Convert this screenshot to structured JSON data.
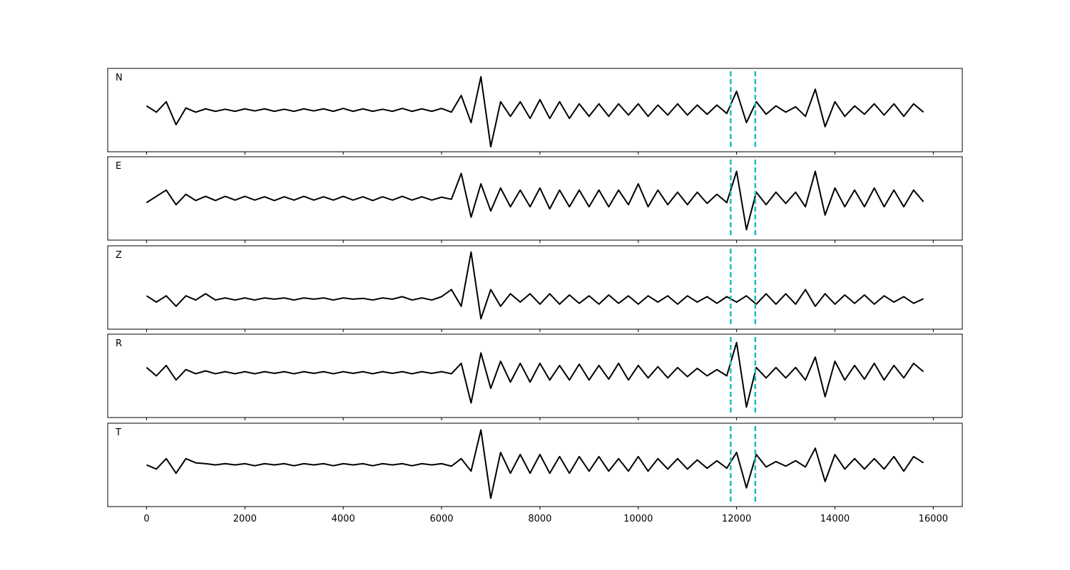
{
  "chart_data": {
    "type": "line",
    "x": [
      0,
      200,
      400,
      600,
      800,
      1000,
      1200,
      1400,
      1600,
      1800,
      2000,
      2200,
      2400,
      2600,
      2800,
      3000,
      3200,
      3400,
      3600,
      3800,
      4000,
      4200,
      4400,
      4600,
      4800,
      5000,
      5200,
      5400,
      5600,
      5800,
      6000,
      6200,
      6400,
      6600,
      6800,
      7000,
      7200,
      7400,
      7600,
      7800,
      8000,
      8200,
      8400,
      8600,
      8800,
      9000,
      9200,
      9400,
      9600,
      9800,
      10000,
      10200,
      10400,
      10600,
      10800,
      11000,
      11200,
      11400,
      11600,
      11800,
      12000,
      12200,
      12400,
      12600,
      12800,
      13000,
      13200,
      13400,
      13600,
      13800,
      14000,
      14200,
      14400,
      14600,
      14800,
      15000,
      15200,
      15400,
      15600,
      15800
    ],
    "series": [
      {
        "name": "N",
        "color": "#000000",
        "values": [
          0.1,
          -0.05,
          0.2,
          -0.35,
          0.05,
          -0.05,
          0.03,
          -0.03,
          0.02,
          -0.03,
          0.03,
          -0.02,
          0.03,
          -0.03,
          0.02,
          -0.03,
          0.03,
          -0.02,
          0.03,
          -0.03,
          0.04,
          -0.03,
          0.03,
          -0.03,
          0.02,
          -0.03,
          0.04,
          -0.03,
          0.03,
          -0.03,
          0.04,
          -0.05,
          0.35,
          -0.3,
          0.8,
          -0.88,
          0.2,
          -0.15,
          0.2,
          -0.2,
          0.25,
          -0.2,
          0.2,
          -0.2,
          0.15,
          -0.15,
          0.15,
          -0.15,
          0.15,
          -0.12,
          0.15,
          -0.15,
          0.12,
          -0.12,
          0.15,
          -0.12,
          0.12,
          -0.1,
          0.12,
          -0.08,
          0.45,
          -0.3,
          0.2,
          -0.1,
          0.1,
          -0.05,
          0.08,
          -0.15,
          0.5,
          -0.4,
          0.2,
          -0.15,
          0.1,
          -0.1,
          0.15,
          -0.12,
          0.15,
          -0.15,
          0.15,
          -0.05
        ]
      },
      {
        "name": "E",
        "color": "#000000",
        "values": [
          -0.1,
          0.05,
          0.2,
          -0.15,
          0.1,
          -0.05,
          0.05,
          -0.05,
          0.05,
          -0.04,
          0.05,
          -0.04,
          0.04,
          -0.05,
          0.04,
          -0.04,
          0.05,
          -0.04,
          0.04,
          -0.04,
          0.05,
          -0.04,
          0.04,
          -0.05,
          0.04,
          -0.04,
          0.05,
          -0.04,
          0.04,
          -0.04,
          0.03,
          -0.02,
          0.6,
          -0.45,
          0.35,
          -0.3,
          0.25,
          -0.2,
          0.2,
          -0.2,
          0.25,
          -0.25,
          0.2,
          -0.2,
          0.2,
          -0.2,
          0.2,
          -0.2,
          0.2,
          -0.15,
          0.35,
          -0.2,
          0.2,
          -0.15,
          0.15,
          -0.15,
          0.15,
          -0.12,
          0.1,
          -0.1,
          0.65,
          -0.75,
          0.15,
          -0.15,
          0.15,
          -0.12,
          0.15,
          -0.2,
          0.65,
          -0.4,
          0.25,
          -0.2,
          0.2,
          -0.2,
          0.25,
          -0.2,
          0.2,
          -0.2,
          0.2,
          -0.08
        ]
      },
      {
        "name": "Z",
        "color": "#000000",
        "values": [
          -0.2,
          -0.35,
          -0.2,
          -0.45,
          -0.2,
          -0.3,
          -0.15,
          -0.3,
          -0.25,
          -0.3,
          -0.25,
          -0.3,
          -0.25,
          -0.28,
          -0.25,
          -0.3,
          -0.25,
          -0.28,
          -0.25,
          -0.3,
          -0.25,
          -0.28,
          -0.26,
          -0.3,
          -0.25,
          -0.28,
          -0.22,
          -0.3,
          -0.25,
          -0.3,
          -0.22,
          -0.05,
          -0.45,
          0.85,
          -0.75,
          -0.05,
          -0.45,
          -0.15,
          -0.35,
          -0.15,
          -0.4,
          -0.15,
          -0.4,
          -0.18,
          -0.38,
          -0.2,
          -0.4,
          -0.18,
          -0.38,
          -0.2,
          -0.4,
          -0.2,
          -0.35,
          -0.2,
          -0.4,
          -0.2,
          -0.35,
          -0.22,
          -0.38,
          -0.22,
          -0.35,
          -0.2,
          -0.4,
          -0.15,
          -0.4,
          -0.15,
          -0.4,
          -0.05,
          -0.45,
          -0.15,
          -0.4,
          -0.18,
          -0.38,
          -0.18,
          -0.4,
          -0.2,
          -0.35,
          -0.22,
          -0.38,
          -0.27
        ]
      },
      {
        "name": "R",
        "color": "#000000",
        "values": [
          0.2,
          0.0,
          0.25,
          -0.1,
          0.15,
          0.05,
          0.12,
          0.05,
          0.1,
          0.05,
          0.1,
          0.05,
          0.1,
          0.06,
          0.1,
          0.05,
          0.1,
          0.06,
          0.1,
          0.05,
          0.1,
          0.06,
          0.1,
          0.05,
          0.1,
          0.06,
          0.1,
          0.05,
          0.1,
          0.06,
          0.1,
          0.05,
          0.3,
          -0.65,
          0.55,
          -0.3,
          0.35,
          -0.15,
          0.3,
          -0.15,
          0.3,
          -0.1,
          0.25,
          -0.1,
          0.28,
          -0.1,
          0.25,
          -0.08,
          0.3,
          -0.1,
          0.25,
          -0.05,
          0.22,
          -0.05,
          0.2,
          -0.02,
          0.18,
          0.0,
          0.15,
          0.0,
          0.8,
          -0.75,
          0.2,
          -0.05,
          0.2,
          -0.05,
          0.2,
          -0.1,
          0.45,
          -0.5,
          0.35,
          -0.1,
          0.25,
          -0.08,
          0.3,
          -0.1,
          0.25,
          -0.05,
          0.3,
          0.1
        ]
      },
      {
        "name": "T",
        "color": "#000000",
        "values": [
          0.0,
          -0.1,
          0.15,
          -0.2,
          0.15,
          0.05,
          0.03,
          0.0,
          0.03,
          0.0,
          0.03,
          -0.02,
          0.03,
          0.0,
          0.03,
          -0.02,
          0.03,
          0.0,
          0.03,
          -0.02,
          0.03,
          0.0,
          0.03,
          -0.02,
          0.03,
          0.0,
          0.03,
          -0.02,
          0.03,
          0.0,
          0.03,
          -0.03,
          0.15,
          -0.15,
          0.84,
          -0.8,
          0.3,
          -0.2,
          0.25,
          -0.2,
          0.25,
          -0.2,
          0.2,
          -0.2,
          0.2,
          -0.15,
          0.2,
          -0.15,
          0.15,
          -0.15,
          0.2,
          -0.15,
          0.15,
          -0.1,
          0.15,
          -0.1,
          0.12,
          -0.08,
          0.1,
          -0.08,
          0.3,
          -0.55,
          0.25,
          -0.05,
          0.08,
          -0.03,
          0.1,
          -0.05,
          0.4,
          -0.4,
          0.25,
          -0.1,
          0.15,
          -0.1,
          0.15,
          -0.1,
          0.2,
          -0.15,
          0.2,
          0.05
        ]
      }
    ],
    "xlim": [
      -790,
      16590
    ],
    "xticks": [
      0,
      2000,
      4000,
      6000,
      8000,
      10000,
      12000,
      14000,
      16000
    ],
    "ylim": [
      -1,
      1
    ],
    "vlines": [
      11880,
      12380
    ],
    "vline_color": "#17bfbf"
  }
}
